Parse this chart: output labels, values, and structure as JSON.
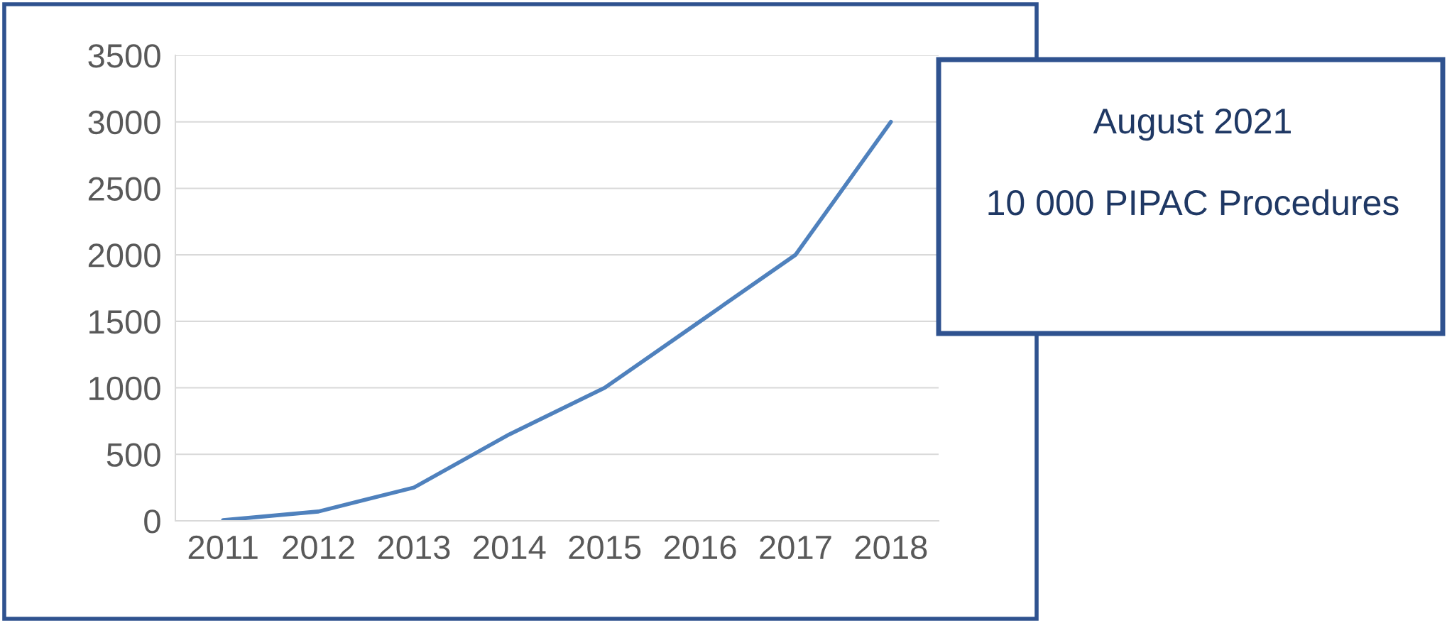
{
  "chart_data": {
    "type": "line",
    "categories": [
      "2011",
      "2012",
      "2013",
      "2014",
      "2015",
      "2016",
      "2017",
      "2018"
    ],
    "series": [
      {
        "color": "#4f81bd",
        "values": [
          5,
          70,
          250,
          650,
          1000,
          1500,
          2000,
          3000
        ]
      }
    ],
    "ylim": [
      0,
      3500
    ],
    "yticks": [
      0,
      500,
      1000,
      1500,
      2000,
      2500,
      3000,
      3500
    ],
    "grid": "y",
    "legend": false,
    "marker": "none",
    "line_style": "solid",
    "annotations": [
      "August 2021",
      "10 000 PIPAC Procedures"
    ]
  }
}
